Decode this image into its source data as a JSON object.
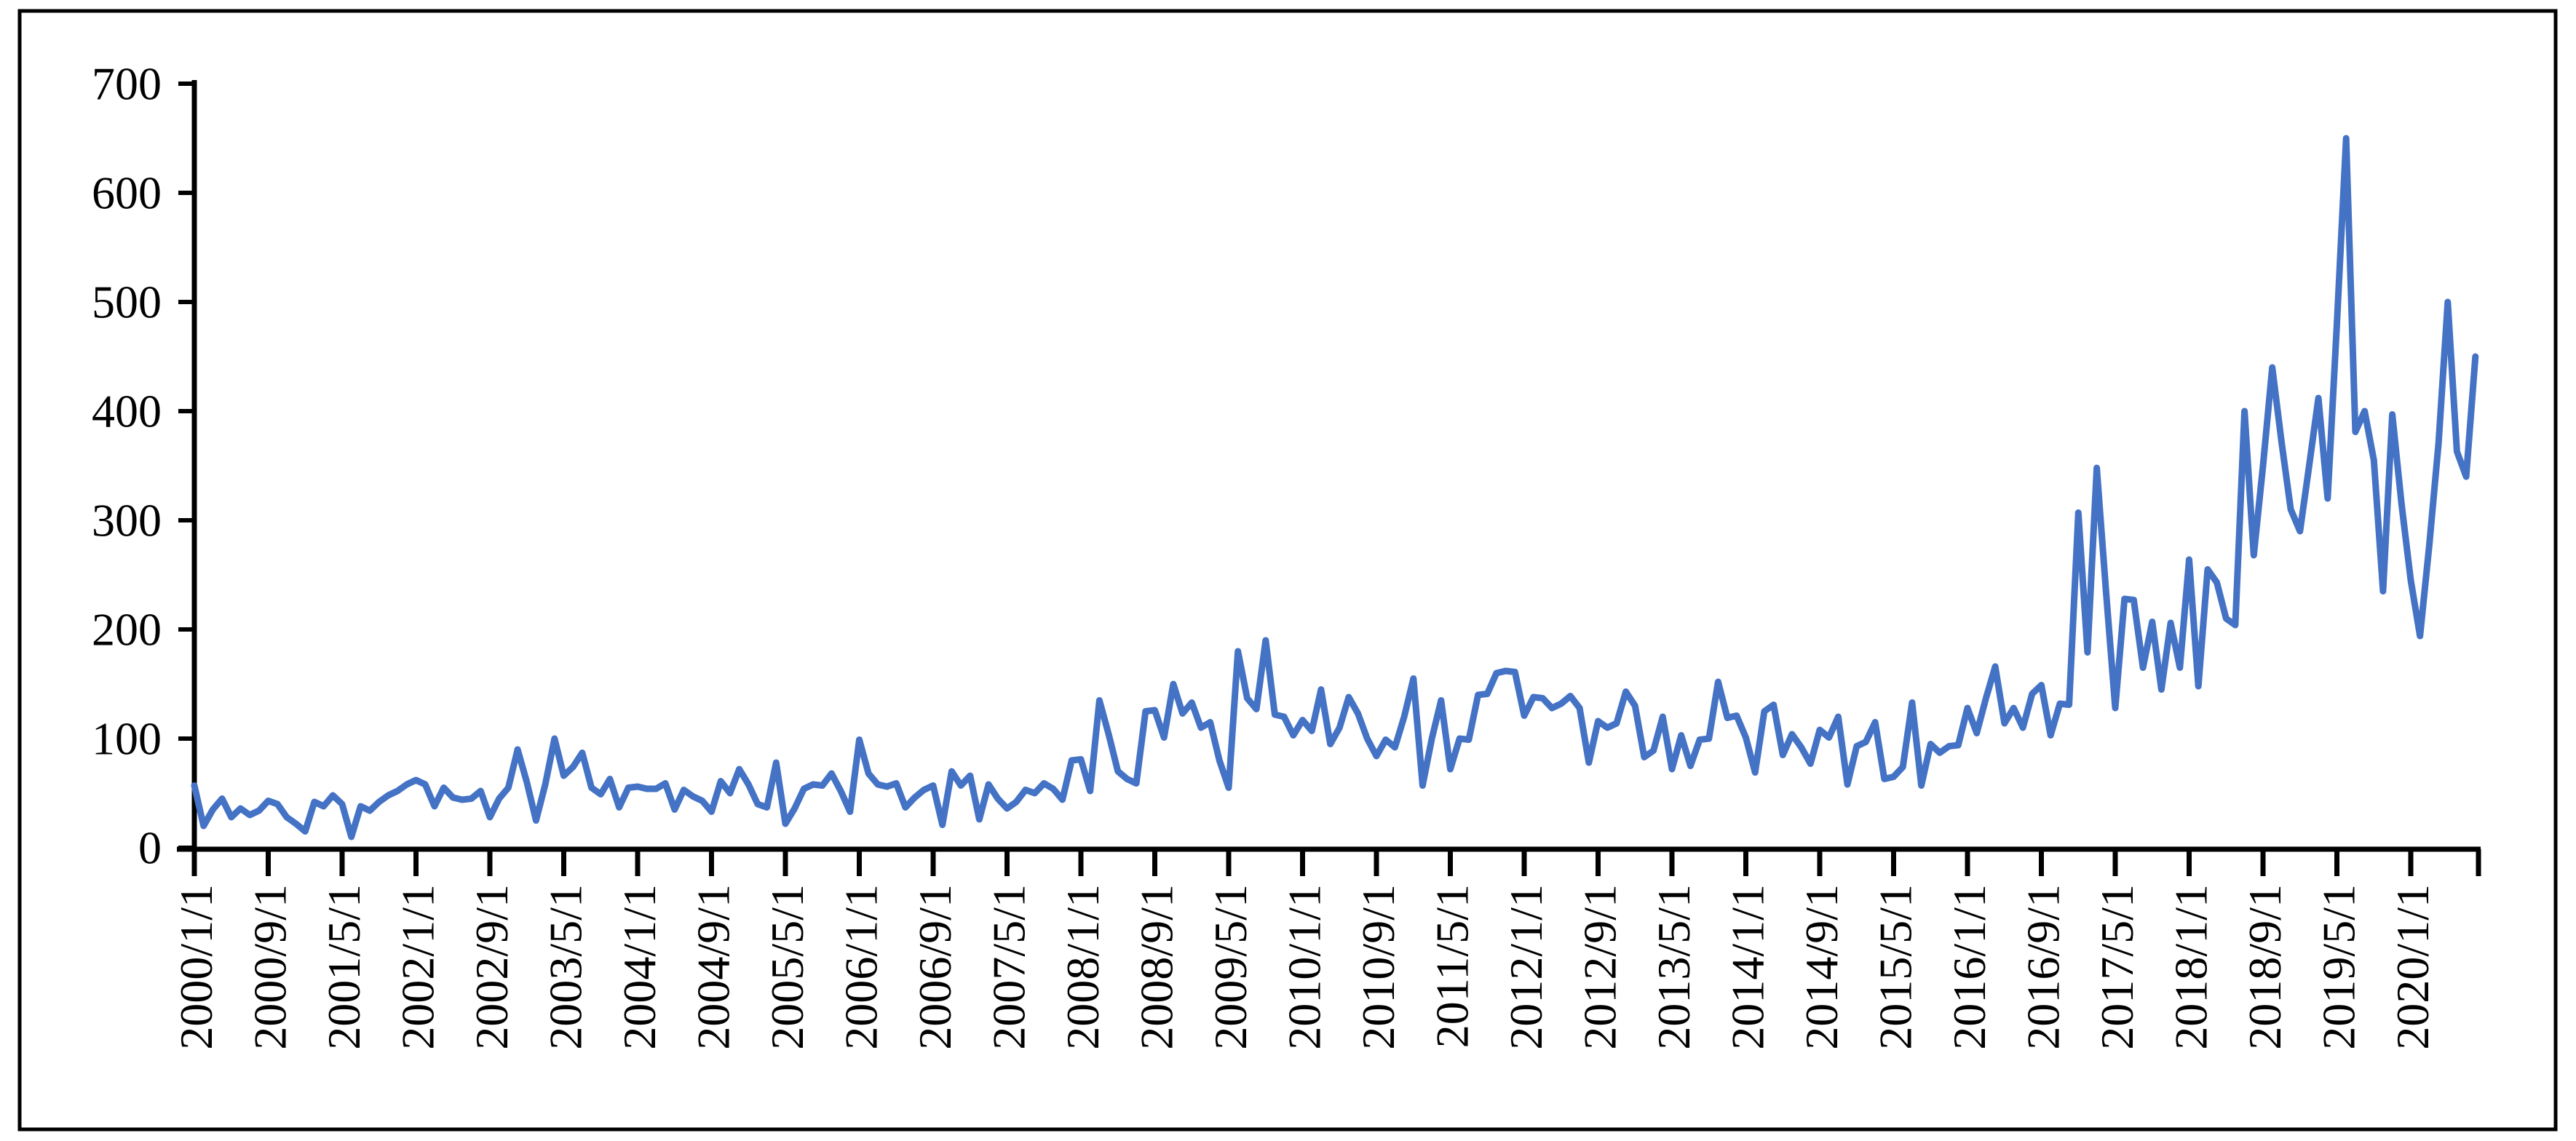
{
  "figure": {
    "background_color": "#ffffff",
    "border_color": "#000000",
    "axis_color": "#000000",
    "tick_label_color": "#000000"
  },
  "chart_data": {
    "type": "line",
    "title": "",
    "xlabel": "",
    "ylabel": "",
    "grid": false,
    "legend_position": "none",
    "ylim": [
      0,
      700
    ],
    "ytick_labels": [
      "0",
      "100",
      "200",
      "300",
      "400",
      "500",
      "600",
      "700"
    ],
    "ytick_values": [
      0,
      100,
      200,
      300,
      400,
      500,
      600,
      700
    ],
    "x_frequency": "monthly",
    "x_start": "2000/1/1",
    "x_end": "2020/8/1",
    "x_tick_label_every_n_months": 8,
    "x_tick_labels": [
      "2000/1/1",
      "2000/9/1",
      "2001/5/1",
      "2002/1/1",
      "2002/9/1",
      "2003/5/1",
      "2004/1/1",
      "2004/9/1",
      "2005/5/1",
      "2006/1/1",
      "2006/9/1",
      "2007/5/1",
      "2008/1/1",
      "2008/9/1",
      "2009/5/1",
      "2010/1/1",
      "2010/9/1",
      "2011/5/1",
      "2012/1/1",
      "2012/9/1",
      "2013/5/1",
      "2014/1/1",
      "2014/9/1",
      "2015/5/1",
      "2016/1/1",
      "2016/9/1",
      "2017/5/1",
      "2018/1/1",
      "2018/9/1",
      "2019/5/1",
      "2020/1/1"
    ],
    "series": [
      {
        "name": "monthly-values",
        "color": "#4472C4",
        "values": [
          57,
          20,
          35,
          45,
          28,
          36,
          30,
          34,
          43,
          40,
          28,
          22,
          15,
          42,
          38,
          48,
          40,
          10,
          38,
          34,
          42,
          48,
          52,
          58,
          62,
          58,
          38,
          55,
          46,
          44,
          45,
          52,
          28,
          45,
          55,
          90,
          60,
          25,
          58,
          100,
          66,
          74,
          87,
          55,
          49,
          63,
          37,
          55,
          56,
          54,
          54,
          59,
          35,
          53,
          47,
          43,
          33,
          61,
          50,
          72,
          58,
          40,
          37,
          78,
          22,
          36,
          54,
          58,
          57,
          68,
          52,
          33,
          99,
          68,
          58,
          56,
          59,
          37,
          46,
          53,
          57,
          21,
          70,
          57,
          66,
          26,
          58,
          45,
          36,
          42,
          53,
          50,
          59,
          54,
          44,
          80,
          81,
          52,
          135,
          104,
          70,
          63,
          59,
          125,
          126,
          101,
          150,
          123,
          133,
          110,
          115,
          80,
          55,
          180,
          137,
          127,
          190,
          122,
          120,
          103,
          117,
          107,
          145,
          95,
          110,
          138,
          123,
          100,
          84,
          99,
          92,
          120,
          155,
          57,
          100,
          135,
          72,
          100,
          99,
          140,
          141,
          160,
          162,
          161,
          121,
          138,
          137,
          128,
          132,
          139,
          128,
          78,
          116,
          110,
          114,
          143,
          130,
          83,
          89,
          120,
          72,
          103,
          75,
          99,
          100,
          152,
          119,
          121,
          101,
          69,
          125,
          131,
          85,
          104,
          92,
          77,
          108,
          101,
          120,
          58,
          93,
          97,
          115,
          63,
          65,
          74,
          133,
          57,
          95,
          87,
          93,
          94,
          128,
          105,
          137,
          166,
          114,
          128,
          110,
          141,
          149,
          103,
          132,
          131,
          307,
          179,
          348,
          235,
          128,
          228,
          227,
          165,
          207,
          145,
          206,
          165,
          264,
          148,
          255,
          243,
          210,
          204,
          400,
          268,
          350,
          440,
          372,
          310,
          290,
          350,
          412,
          320,
          480,
          650,
          381,
          400,
          355,
          235,
          397,
          315,
          245,
          194,
          277,
          370,
          500,
          363,
          340,
          450
        ]
      }
    ]
  }
}
